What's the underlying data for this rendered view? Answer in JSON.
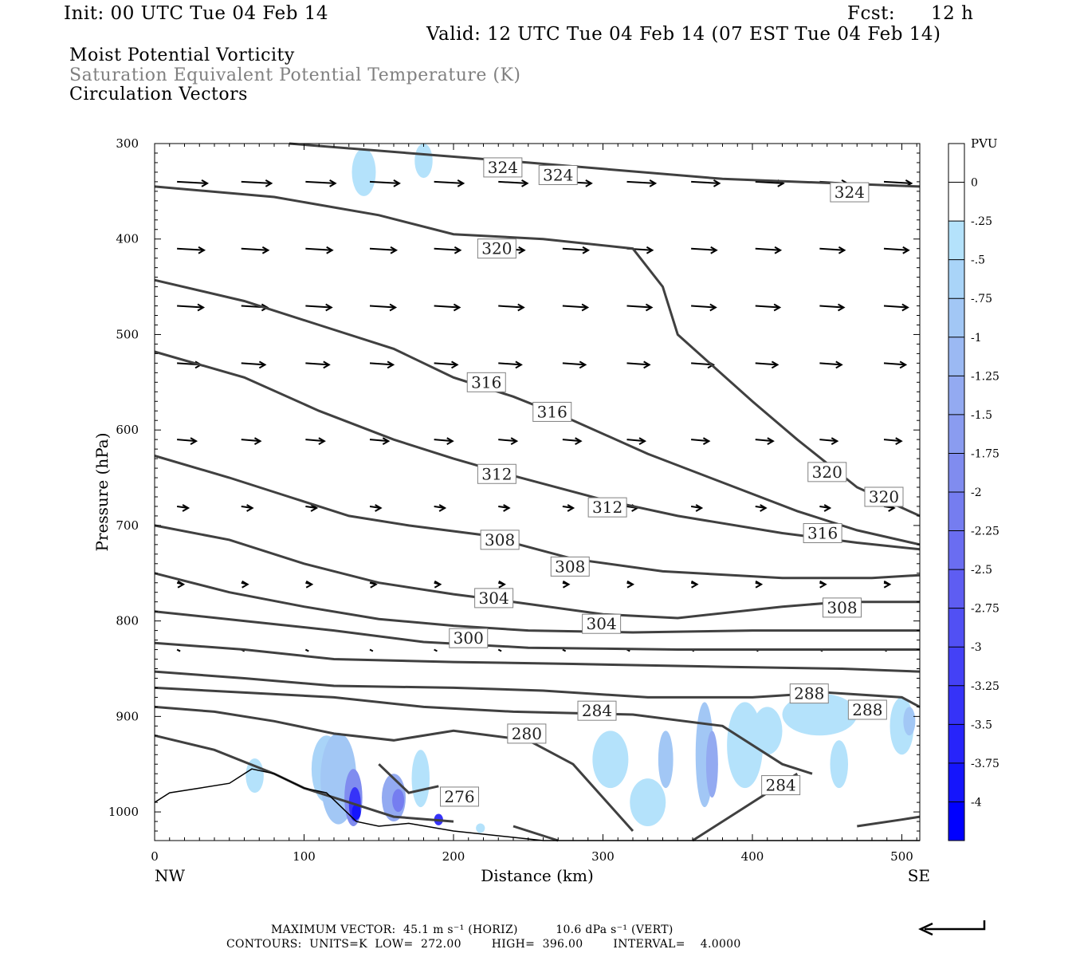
{
  "header": {
    "init": "Init: 00 UTC Tue 04 Feb 14",
    "fcst_label": "Fcst:",
    "fcst_value": "12 h",
    "valid": "Valid: 12 UTC Tue 04 Feb 14 (07 EST Tue 04 Feb 14)",
    "line1": "Moist Potential Vorticity",
    "line2": "Saturation Equivalent Potential Temperature (K)",
    "line3": "Circulation Vectors"
  },
  "chart_data": {
    "type": "contour",
    "xlabel": "Distance (km)",
    "ylabel": "Pressure (hPa)",
    "xlim": [
      0,
      512
    ],
    "ylim": [
      300,
      1030
    ],
    "x_ticks": [
      0,
      100,
      200,
      300,
      400,
      500
    ],
    "y_ticks": [
      300,
      400,
      500,
      600,
      700,
      800,
      900,
      1000
    ],
    "x_end_labels": {
      "left": "NW",
      "right": "SE"
    },
    "colorbar": {
      "title": "PVU",
      "labels": [
        "0",
        "-.25",
        "-.5",
        "-.75",
        "-1",
        "-1.25",
        "-1.5",
        "-1.75",
        "-2",
        "-2.25",
        "-2.5",
        "-2.75",
        "-3",
        "-3.25",
        "-3.5",
        "-3.75",
        "-4"
      ],
      "colors": [
        "#ffffff",
        "#ffffff",
        "#b4e2fb",
        "#a9d4f8",
        "#a2c7f5",
        "#9bb9f3",
        "#93aaf1",
        "#8a9cf0",
        "#808cef",
        "#757df0",
        "#6a6df1",
        "#5e5df2",
        "#5150f4",
        "#4441f6",
        "#3633f8",
        "#2724fa",
        "#1515fc",
        "#0000ff"
      ]
    },
    "contour_labels": [
      {
        "text": "324",
        "x": 233,
        "y": 325
      },
      {
        "text": "324",
        "x": 270,
        "y": 333
      },
      {
        "text": "324",
        "x": 465,
        "y": 351
      },
      {
        "text": "320",
        "x": 229,
        "y": 410
      },
      {
        "text": "320",
        "x": 450,
        "y": 644
      },
      {
        "text": "320",
        "x": 488,
        "y": 670
      },
      {
        "text": "316",
        "x": 222,
        "y": 550
      },
      {
        "text": "316",
        "x": 266,
        "y": 581
      },
      {
        "text": "316",
        "x": 447,
        "y": 708
      },
      {
        "text": "312",
        "x": 229,
        "y": 646
      },
      {
        "text": "312",
        "x": 303,
        "y": 681
      },
      {
        "text": "308",
        "x": 231,
        "y": 715
      },
      {
        "text": "308",
        "x": 278,
        "y": 743
      },
      {
        "text": "308",
        "x": 460,
        "y": 786
      },
      {
        "text": "304",
        "x": 227,
        "y": 776
      },
      {
        "text": "304",
        "x": 299,
        "y": 803
      },
      {
        "text": "300",
        "x": 210,
        "y": 818
      },
      {
        "text": "288",
        "x": 438,
        "y": 876
      },
      {
        "text": "288",
        "x": 477,
        "y": 893
      },
      {
        "text": "284",
        "x": 296,
        "y": 894
      },
      {
        "text": "284",
        "x": 419,
        "y": 972
      },
      {
        "text": "280",
        "x": 249,
        "y": 918
      },
      {
        "text": "276",
        "x": 204,
        "y": 984
      }
    ],
    "theta_e_contours_K": [
      272,
      276,
      280,
      284,
      288,
      292,
      296,
      300,
      304,
      308,
      312,
      316,
      320,
      324
    ]
  },
  "footer": {
    "line1": "MAXIMUM VECTOR:  45.1 m s⁻¹ (HORIZ)          10.6 dPa s⁻¹ (VERT)",
    "line2": "CONTOURS:  UNITS=K  LOW=  272.00        HIGH=  396.00        INTERVAL=    4.0000"
  }
}
